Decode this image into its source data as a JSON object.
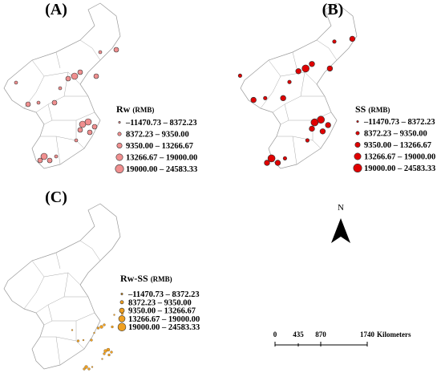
{
  "panels": [
    {
      "label": "(A)",
      "legend_title": "Rw",
      "legend_unit": "(RMB)",
      "ranges": [
        "–11470.73 – 8372.23",
        "8372.23 – 9350.00",
        "9350.00 – 13266.67",
        "13266.67 – 19000.00",
        "19000.00 – 24583.33"
      ]
    },
    {
      "label": "(B)",
      "legend_title": "SS",
      "legend_unit": "(RMB)",
      "ranges": [
        "–11470.73 – 8372.23",
        "8372.23 – 9350.00",
        "9350.00 – 13266.67",
        "13266.67 – 19000.00",
        "19000.00 – 24583.33"
      ]
    },
    {
      "label": "(C)",
      "legend_title": "Rw-SS",
      "legend_unit": "(RMB)",
      "ranges": [
        "–11470.73 – 8372.23",
        "8372.23 – 9350.00",
        "9350.00 – 13266.67",
        "13266.67 – 19000.00",
        "19000.00 – 24583.33"
      ]
    }
  ],
  "north": "N",
  "scale": {
    "ticks": [
      "0",
      "435",
      "870",
      "1740"
    ],
    "unit": "Kilometers"
  }
}
